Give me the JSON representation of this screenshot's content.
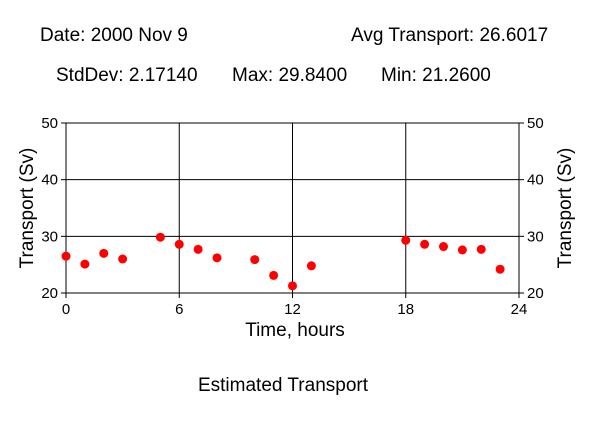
{
  "header": {
    "date": "Date: 2000 Nov 9",
    "avg": "Avg Transport: 26.6017",
    "stddev": "StdDev: 2.17140",
    "max": "Max: 29.8400",
    "min": "Min: 21.2600"
  },
  "caption": "Estimated Transport",
  "chart_data": {
    "type": "scatter",
    "xlabel": "Time, hours",
    "ylabel": "Transport (Sv)",
    "xlim": [
      0,
      24
    ],
    "ylim": [
      20,
      50
    ],
    "xticks": [
      0,
      6,
      12,
      18,
      24
    ],
    "yticks": [
      20,
      30,
      40,
      50
    ],
    "grid": true,
    "marker_color": "#ff0000",
    "points": [
      {
        "x": 0,
        "y": 26.5
      },
      {
        "x": 1,
        "y": 25.1
      },
      {
        "x": 2,
        "y": 27.0
      },
      {
        "x": 3,
        "y": 26.0
      },
      {
        "x": 5,
        "y": 29.84
      },
      {
        "x": 6,
        "y": 28.6
      },
      {
        "x": 7,
        "y": 27.7
      },
      {
        "x": 8,
        "y": 26.2
      },
      {
        "x": 10,
        "y": 25.9
      },
      {
        "x": 11,
        "y": 23.1
      },
      {
        "x": 12,
        "y": 21.26
      },
      {
        "x": 13,
        "y": 24.8
      },
      {
        "x": 18,
        "y": 29.3
      },
      {
        "x": 19,
        "y": 28.6
      },
      {
        "x": 20,
        "y": 28.2
      },
      {
        "x": 21,
        "y": 27.6
      },
      {
        "x": 22,
        "y": 27.7
      },
      {
        "x": 23,
        "y": 24.2
      }
    ]
  }
}
